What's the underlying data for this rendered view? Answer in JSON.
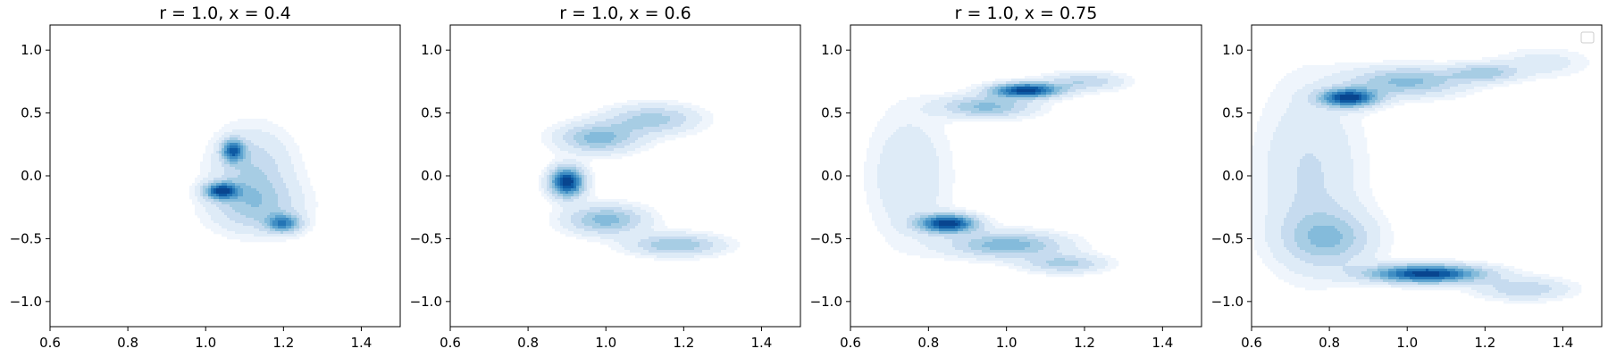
{
  "chart_data": [
    {
      "type": "contour",
      "title": "r = 1.0, x = 0.4",
      "xlim": [
        0.6,
        1.5
      ],
      "ylim": [
        -1.2,
        1.2
      ],
      "xticks": [
        0.6,
        0.8,
        1.0,
        1.2,
        1.4
      ],
      "yticks": [
        -1.0,
        -0.5,
        0.0,
        0.5,
        1.0
      ],
      "xtick_labels": [
        "0.6",
        "0.8",
        "1.0",
        "1.2",
        "1.4"
      ],
      "ytick_labels": [
        "−1.0",
        "−0.5",
        "0.0",
        "0.5",
        "1.0"
      ],
      "colormap": "Blues",
      "levels": 10,
      "density_modes": [
        {
          "x": 1.04,
          "y": -0.12,
          "sx": 0.03,
          "sy": 0.045,
          "w": 1.0
        },
        {
          "x": 1.07,
          "y": 0.2,
          "sx": 0.02,
          "sy": 0.06,
          "w": 0.9
        },
        {
          "x": 1.2,
          "y": -0.38,
          "sx": 0.03,
          "sy": 0.05,
          "w": 0.75
        },
        {
          "x": 1.12,
          "y": 0.05,
          "sx": 0.07,
          "sy": 0.22,
          "w": 0.35
        },
        {
          "x": 1.13,
          "y": -0.25,
          "sx": 0.08,
          "sy": 0.14,
          "w": 0.35
        }
      ],
      "legend": false
    },
    {
      "type": "contour",
      "title": "r = 1.0, x = 0.6",
      "xlim": [
        0.6,
        1.5
      ],
      "ylim": [
        -1.2,
        1.2
      ],
      "xticks": [
        0.6,
        0.8,
        1.0,
        1.2,
        1.4
      ],
      "yticks": [
        -1.0,
        -0.5,
        0.0,
        0.5,
        1.0
      ],
      "xtick_labels": [
        "0.6",
        "0.8",
        "1.0",
        "1.2",
        "1.4"
      ],
      "ytick_labels": [
        "−1.0",
        "−0.5",
        "0.0",
        "0.5",
        "1.0"
      ],
      "colormap": "Blues",
      "levels": 10,
      "density_modes": [
        {
          "x": 0.9,
          "y": -0.05,
          "sx": 0.03,
          "sy": 0.08,
          "w": 1.0
        },
        {
          "x": 0.98,
          "y": 0.3,
          "sx": 0.07,
          "sy": 0.08,
          "w": 0.45
        },
        {
          "x": 1.12,
          "y": 0.45,
          "sx": 0.08,
          "sy": 0.08,
          "w": 0.35
        },
        {
          "x": 1.0,
          "y": -0.35,
          "sx": 0.07,
          "sy": 0.08,
          "w": 0.45
        },
        {
          "x": 1.18,
          "y": -0.55,
          "sx": 0.08,
          "sy": 0.06,
          "w": 0.4
        }
      ],
      "legend": false
    },
    {
      "type": "contour",
      "title": "r = 1.0, x = 0.75",
      "xlim": [
        0.6,
        1.5
      ],
      "ylim": [
        -1.2,
        1.2
      ],
      "xticks": [
        0.6,
        0.8,
        1.0,
        1.2,
        1.4
      ],
      "yticks": [
        -1.0,
        -0.5,
        0.0,
        0.5,
        1.0
      ],
      "xtick_labels": [
        "0.6",
        "0.8",
        "1.0",
        "1.2",
        "1.4"
      ],
      "ytick_labels": [
        "−1.0",
        "−0.5",
        "0.0",
        "0.5",
        "1.0"
      ],
      "colormap": "Blues",
      "levels": 10,
      "density_modes": [
        {
          "x": 1.05,
          "y": 0.68,
          "sx": 0.06,
          "sy": 0.04,
          "w": 1.0
        },
        {
          "x": 0.85,
          "y": -0.38,
          "sx": 0.05,
          "sy": 0.05,
          "w": 1.0
        },
        {
          "x": 0.95,
          "y": 0.55,
          "sx": 0.08,
          "sy": 0.06,
          "w": 0.45
        },
        {
          "x": 1.0,
          "y": -0.55,
          "sx": 0.1,
          "sy": 0.07,
          "w": 0.5
        },
        {
          "x": 1.15,
          "y": -0.7,
          "sx": 0.07,
          "sy": 0.05,
          "w": 0.35
        },
        {
          "x": 0.75,
          "y": 0.0,
          "sx": 0.07,
          "sy": 0.35,
          "w": 0.2
        },
        {
          "x": 1.2,
          "y": 0.75,
          "sx": 0.07,
          "sy": 0.05,
          "w": 0.3
        }
      ],
      "legend": false
    },
    {
      "type": "contour",
      "title": "",
      "xlim": [
        0.6,
        1.5
      ],
      "ylim": [
        -1.2,
        1.2
      ],
      "xticks": [
        0.6,
        0.8,
        1.0,
        1.2,
        1.4
      ],
      "yticks": [
        -1.0,
        -0.5,
        0.0,
        0.5,
        1.0
      ],
      "xtick_labels": [
        "0.6",
        "0.8",
        "1.0",
        "1.2",
        "1.4"
      ],
      "ytick_labels": [
        "−1.0",
        "−0.5",
        "0.0",
        "0.5",
        "1.0"
      ],
      "colormap": "Blues",
      "levels": 10,
      "density_modes": [
        {
          "x": 0.85,
          "y": 0.62,
          "sx": 0.05,
          "sy": 0.05,
          "w": 0.95
        },
        {
          "x": 1.05,
          "y": -0.78,
          "sx": 0.1,
          "sy": 0.05,
          "w": 1.0
        },
        {
          "x": 1.0,
          "y": 0.75,
          "sx": 0.1,
          "sy": 0.08,
          "w": 0.45
        },
        {
          "x": 0.8,
          "y": -0.5,
          "sx": 0.08,
          "sy": 0.15,
          "w": 0.35
        },
        {
          "x": 0.75,
          "y": 0.0,
          "sx": 0.09,
          "sy": 0.5,
          "w": 0.22
        },
        {
          "x": 1.3,
          "y": -0.9,
          "sx": 0.08,
          "sy": 0.06,
          "w": 0.3
        },
        {
          "x": 1.35,
          "y": 0.9,
          "sx": 0.08,
          "sy": 0.08,
          "w": 0.15
        },
        {
          "x": 1.2,
          "y": 0.82,
          "sx": 0.06,
          "sy": 0.05,
          "w": 0.35
        }
      ],
      "legend": true
    }
  ]
}
